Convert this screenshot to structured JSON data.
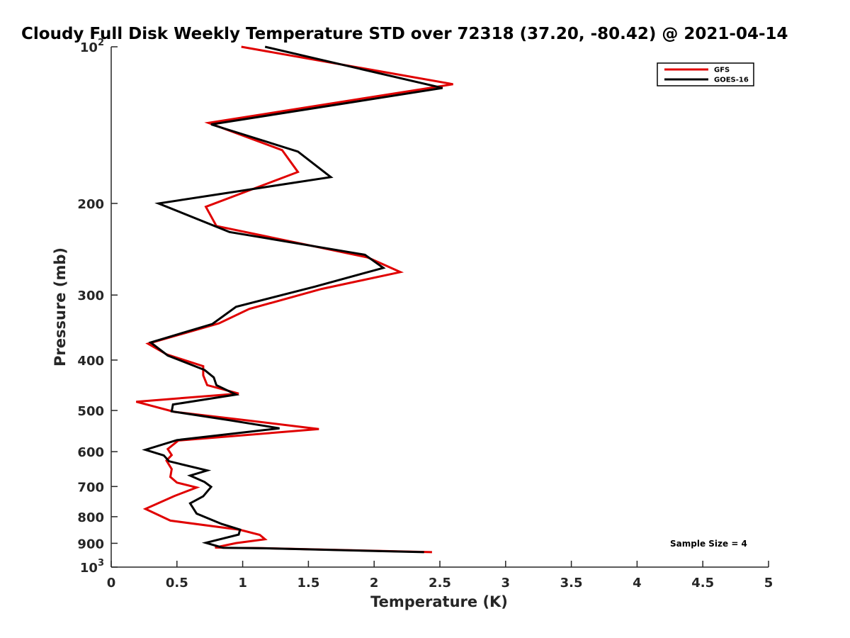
{
  "chart_data": {
    "type": "line",
    "title": "Cloudy Full Disk Weekly Temperature STD over 72318 (37.20, -80.42) @ 2021-04-14",
    "xlabel": "Temperature (K)",
    "ylabel": "Pressure (mb)",
    "xlim": [
      0,
      5
    ],
    "ylim": [
      100,
      1000
    ],
    "yscale": "log",
    "y_reversed": true,
    "xticks": [
      0,
      0.5,
      1,
      1.5,
      2,
      2.5,
      3,
      3.5,
      4,
      4.5,
      5
    ],
    "xtick_labels": [
      "0",
      "0.5",
      "1",
      "1.5",
      "2",
      "2.5",
      "3",
      "3.5",
      "4",
      "4.5",
      "5"
    ],
    "yticks": [
      100,
      200,
      300,
      400,
      500,
      600,
      700,
      800,
      900,
      1000
    ],
    "ytick_labels": [
      {
        "base": "10",
        "exp": "2"
      },
      {
        "base": "200",
        "exp": ""
      },
      {
        "base": "300",
        "exp": ""
      },
      {
        "base": "400",
        "exp": ""
      },
      {
        "base": "500",
        "exp": ""
      },
      {
        "base": "600",
        "exp": ""
      },
      {
        "base": "700",
        "exp": ""
      },
      {
        "base": "800",
        "exp": ""
      },
      {
        "base": "900",
        "exp": ""
      },
      {
        "base": "10",
        "exp": "3"
      }
    ],
    "legend_position": "top-right",
    "grid": false,
    "annotation": "Sample Size = 4",
    "series": [
      {
        "name": "GFS",
        "color": "#e00000",
        "x": [
          0.99,
          2.6,
          0.74,
          1.3,
          1.42,
          0.72,
          0.8,
          1.95,
          2.2,
          1.6,
          1.05,
          0.82,
          0.28,
          0.42,
          0.7,
          0.7,
          0.73,
          0.97,
          0.19,
          0.48,
          1.05,
          1.58,
          0.51,
          0.43,
          0.46,
          0.42,
          0.46,
          0.45,
          0.5,
          0.65,
          0.48,
          0.26,
          0.45,
          0.98,
          1.13,
          1.17,
          0.95,
          0.79,
          1.12,
          2.44
        ],
        "y": [
          100,
          118,
          140,
          158,
          174,
          203,
          221,
          254,
          271,
          292,
          319,
          340,
          372,
          390,
          411,
          428,
          447,
          464,
          481,
          503,
          523,
          543,
          571,
          593,
          609,
          624,
          648,
          671,
          688,
          703,
          730,
          773,
          814,
          848,
          867,
          884,
          899,
          917,
          919,
          936
        ]
      },
      {
        "name": "GOES-16",
        "color": "#000000",
        "x": [
          1.17,
          2.52,
          0.76,
          1.42,
          1.67,
          0.36,
          0.9,
          1.93,
          2.07,
          1.55,
          0.95,
          0.77,
          0.3,
          0.43,
          0.71,
          0.78,
          0.8,
          0.95,
          0.47,
          0.46,
          0.9,
          1.28,
          0.5,
          0.26,
          0.4,
          0.44,
          0.73,
          0.6,
          0.71,
          0.76,
          0.7,
          0.6,
          0.65,
          0.84,
          0.98,
          0.97,
          0.72,
          0.85,
          1.15,
          2.38
        ],
        "y": [
          100,
          120,
          141,
          159,
          178,
          200,
          227,
          251,
          266,
          289,
          316,
          341,
          370,
          392,
          418,
          432,
          447,
          466,
          487,
          502,
          522,
          541,
          570,
          595,
          610,
          626,
          652,
          667,
          686,
          701,
          731,
          754,
          789,
          826,
          847,
          866,
          898,
          918,
          920,
          936
        ]
      }
    ]
  }
}
